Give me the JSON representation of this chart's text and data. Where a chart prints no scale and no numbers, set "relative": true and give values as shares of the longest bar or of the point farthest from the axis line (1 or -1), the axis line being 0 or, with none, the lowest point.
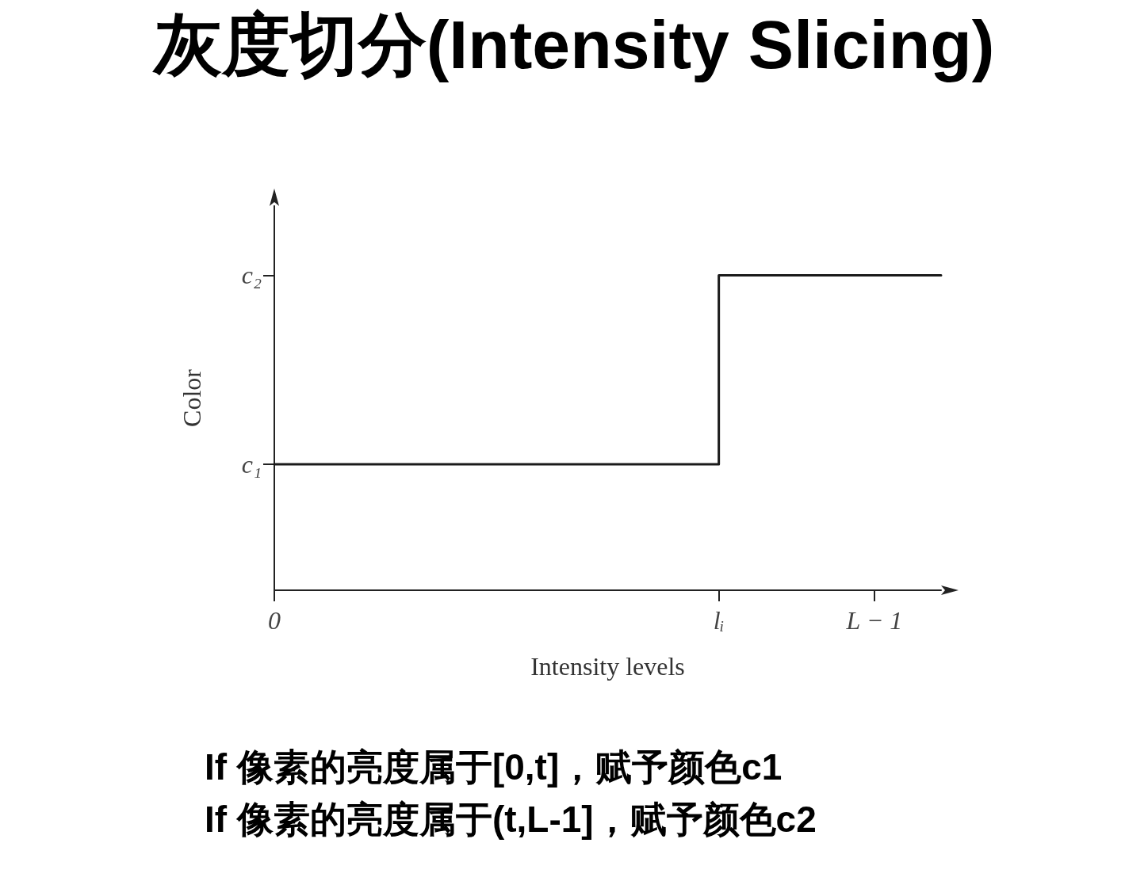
{
  "chart_data": {
    "type": "step",
    "title": "灰度切分(Intensity Slicing)",
    "xlabel": "Intensity levels",
    "ylabel": "Color",
    "categories": [
      "0",
      null,
      null,
      null,
      null,
      null,
      null,
      null,
      null,
      null,
      null,
      null,
      null,
      null,
      null,
      null,
      null,
      null,
      null,
      null,
      "lᵢ",
      null,
      null,
      null,
      null,
      null,
      null,
      "L − 1",
      null,
      null,
      null
    ],
    "relative": true,
    "series": [
      {
        "color": "#1a1a1a",
        "values": [
          0.4,
          0.4,
          0.4,
          0.4,
          0.4,
          0.4,
          0.4,
          0.4,
          0.4,
          0.4,
          0.4,
          0.4,
          0.4,
          0.4,
          0.4,
          0.4,
          0.4,
          0.4,
          0.4,
          0.4,
          1,
          1,
          1,
          1,
          1,
          1,
          1,
          1,
          1,
          1,
          1
        ]
      }
    ],
    "marker": "none",
    "line_style": "solid",
    "annotations": [
      "c₁",
      "c₂",
      "If 像素的亮度属于[0,t]，赋予颜色c1",
      "If 像素的亮度属于(t,L-1]，赋予颜色c2"
    ]
  }
}
